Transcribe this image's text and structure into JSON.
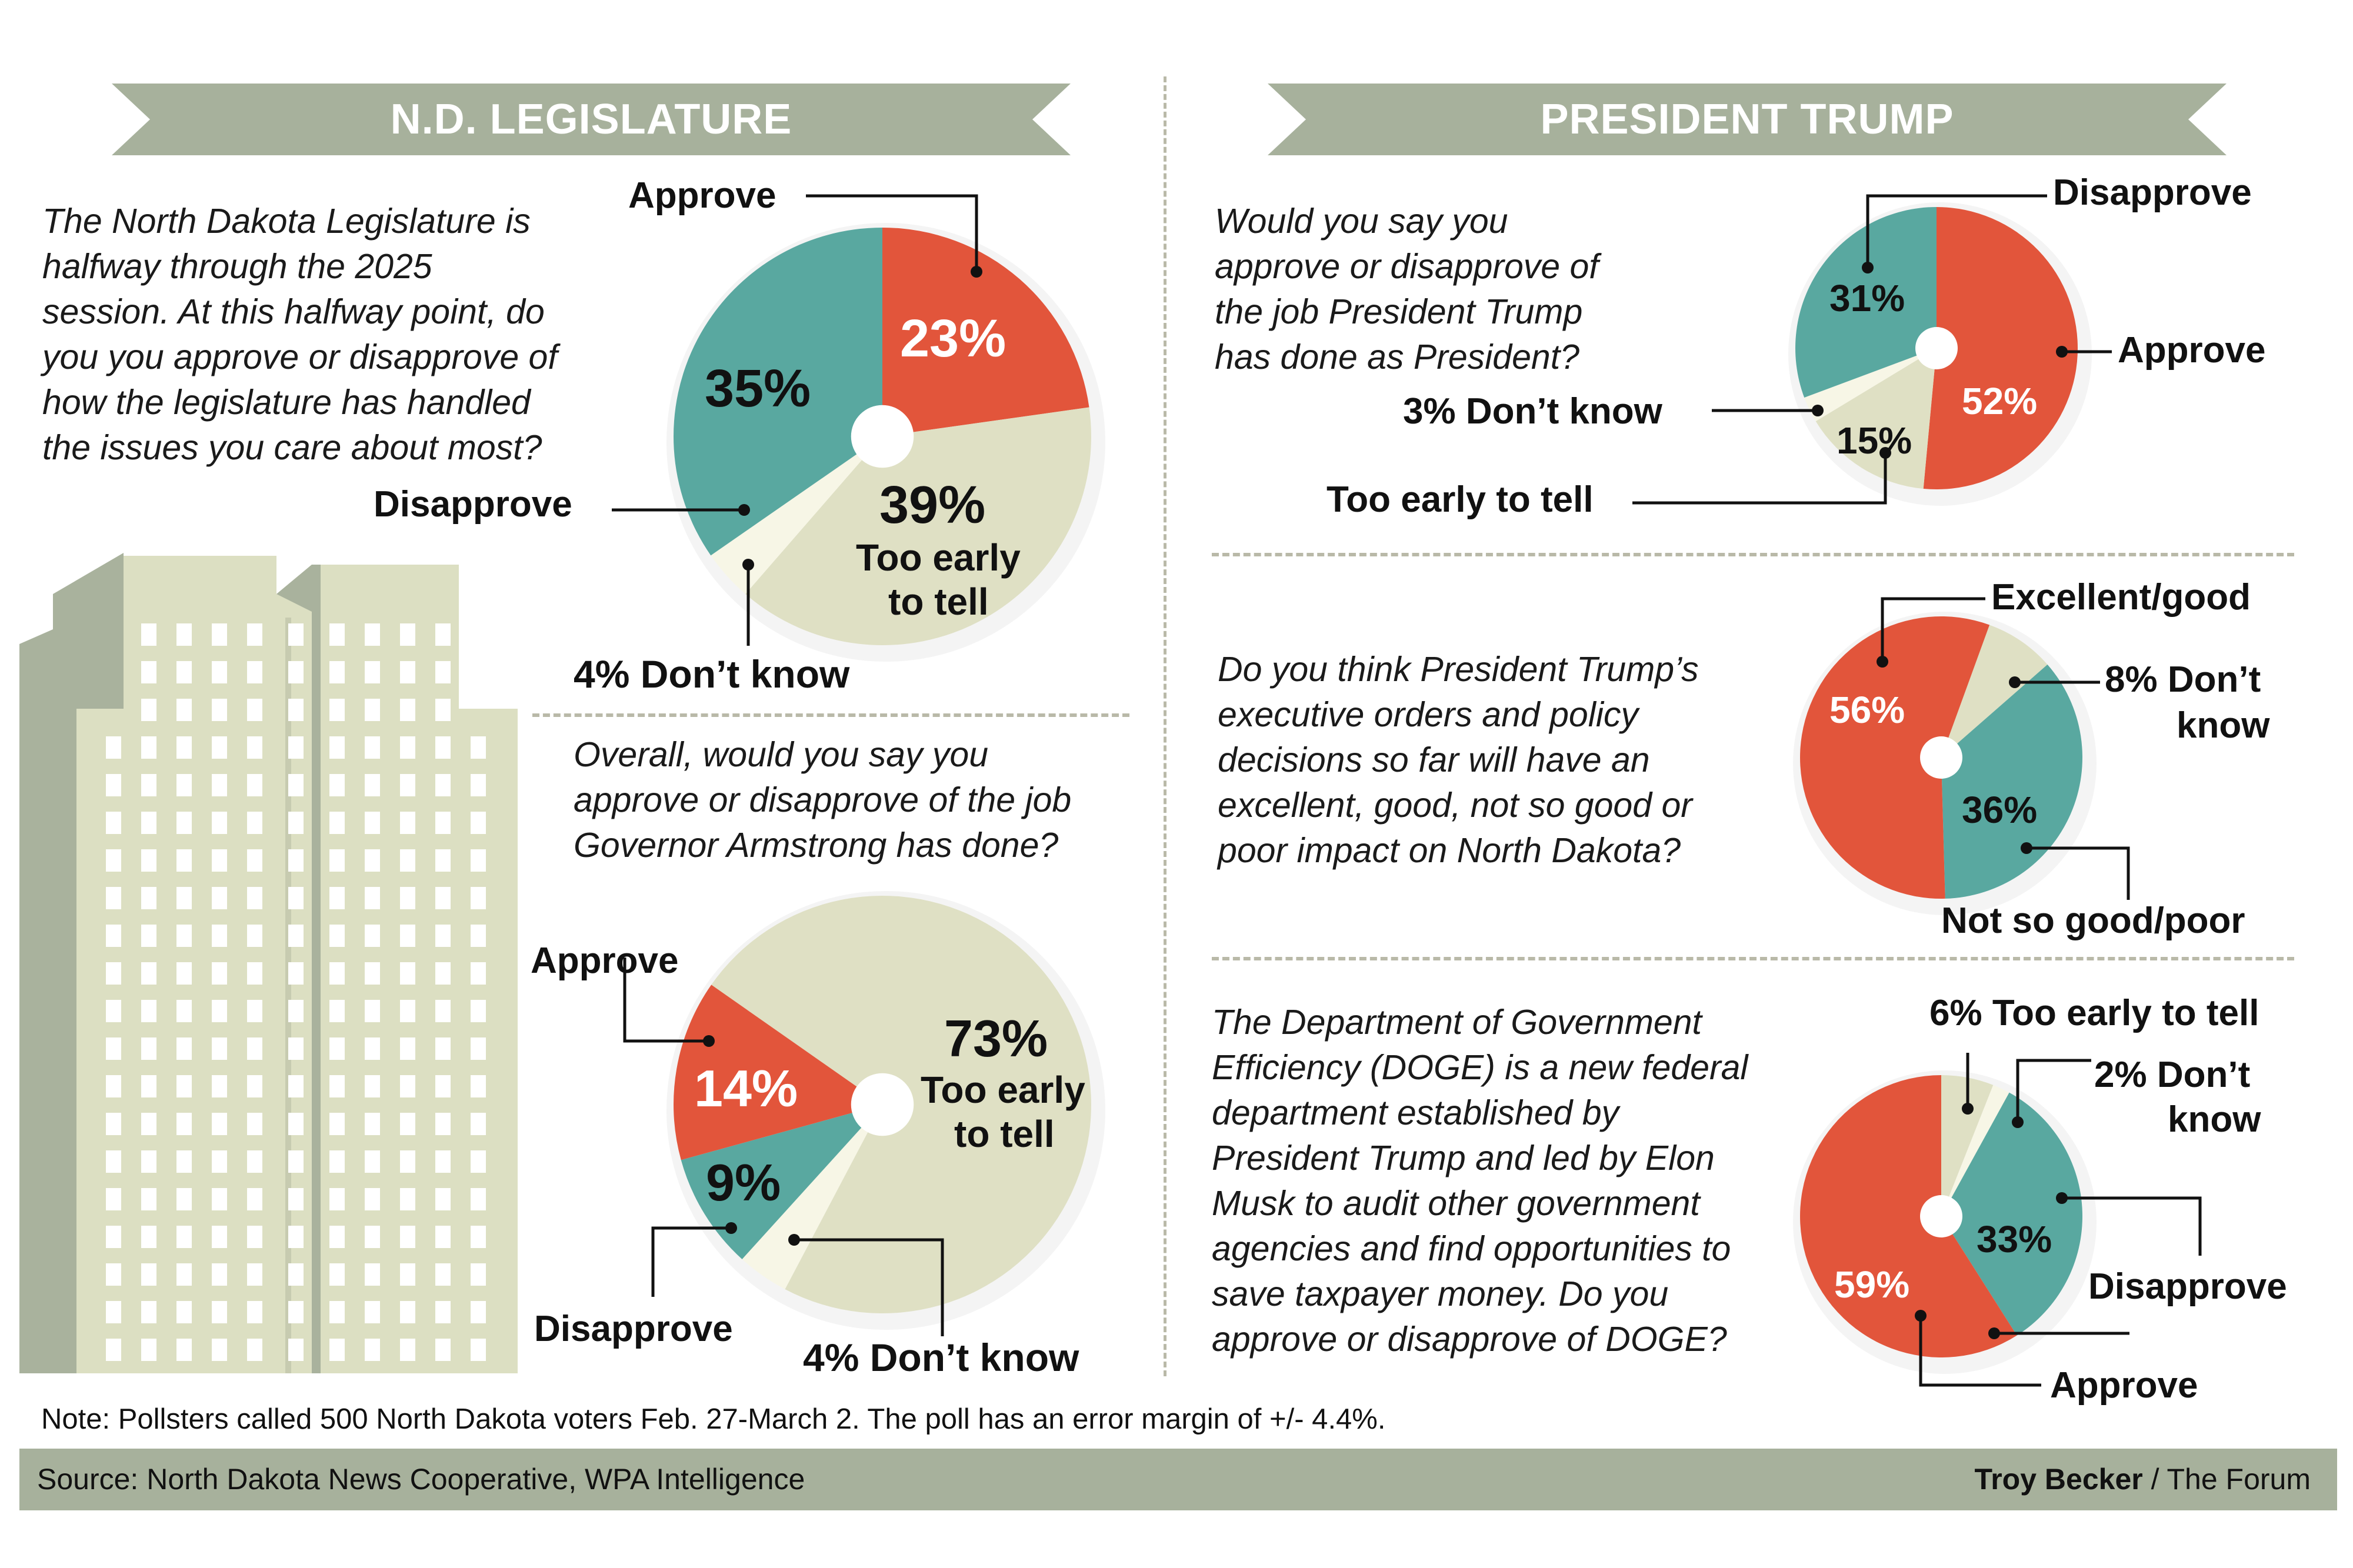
{
  "colors": {
    "approve_red": "#e2553b",
    "disapprove_teal": "#59a8a0",
    "too_early_beige": "#dfe0c4",
    "dont_know_cream": "#f7f6e6",
    "banner_gray": "#a7b19c",
    "building_light": "#dcdfc2",
    "building_dark": "#a9b29d"
  },
  "sections": {
    "left_title": "N.D. LEGISLATURE",
    "right_title": "PRESIDENT TRUMP"
  },
  "questions": {
    "legislature": "The North Dakota Legislature is halfway through the 2025 session. At this halfway point, do you you approve or disapprove of how the legislature has handled the issues you care about most?",
    "governor": "Overall, would you say you approve or disapprove of the job Governor Armstrong has done?",
    "trump_job": "Would you say you approve or disapprove of the job President Trump has done as President?",
    "trump_orders": "Do you think President Trump’s executive orders and policy decisions so far will have an excellent, good, not so good or poor impact on North Dakota?",
    "doge": "The Department of Government Efficiency (DOGE) is a new federal department established by President Trump and led by Elon Musk to audit other government agencies and find opportunities to save taxpayer money. Do you approve or disapprove of DOGE?"
  },
  "question_lines": {
    "legislature": [
      "The North Dakota Legislature is",
      "halfway through the 2025",
      "session. At this halfway point, do",
      "you you approve or disapprove of",
      "how the legislature has handled",
      "the issues you care about most?"
    ],
    "governor": [
      "Overall, would you say you",
      "approve or disapprove of the job",
      "Governor Armstrong has done?"
    ],
    "trump_job": [
      "Would you say you",
      "approve or disapprove of",
      "the job President Trump",
      "has done as President?"
    ],
    "trump_orders": [
      "Do you think President Trump’s",
      "executive orders and policy",
      "decisions so far will have an",
      "excellent, good, not so good or",
      "poor impact on North Dakota?"
    ],
    "doge": [
      "The Department of Government",
      "Efficiency (DOGE) is a new federal",
      "department established by",
      "President Trump and led by Elon",
      "Musk to audit other government",
      "agencies and find opportunities to",
      "save taxpayer money. Do you",
      "approve or disapprove of DOGE?"
    ]
  },
  "labels": {
    "legislature": {
      "approve": "Approve",
      "disapprove": "Disapprove",
      "dont_know": "4% Don’t know",
      "too_early_pct": "39%",
      "too_early_1": "Too early",
      "too_early_2": "to tell",
      "approve_pct": "23%",
      "disapprove_pct": "35%"
    },
    "governor": {
      "approve": "Approve",
      "disapprove": "Disapprove",
      "dont_know": "4% Don’t know",
      "too_early_pct": "73%",
      "too_early_1": "Too early",
      "too_early_2": "to tell",
      "approve_pct": "14%",
      "disapprove_pct": "9%"
    },
    "trump_job": {
      "approve": "Approve",
      "disapprove": "Disapprove",
      "dont_know": "3% Don’t know",
      "too_early": "Too early to tell",
      "approve_pct": "52%",
      "disapprove_pct": "31%",
      "too_early_pct": "15%"
    },
    "trump_orders": {
      "excellent": "Excellent/good",
      "not_so_good": "Not so good/poor",
      "dont_know_1": "8% Don’t",
      "dont_know_2": "know",
      "excellent_pct": "56%",
      "not_so_good_pct": "36%"
    },
    "doge": {
      "approve": "Approve",
      "disapprove": "Disapprove",
      "too_early": "6% Too early to tell",
      "dont_know_1": "2% Don’t",
      "dont_know_2": "know",
      "approve_pct": "59%",
      "disapprove_pct": "33%"
    }
  },
  "footer": {
    "note": "Note: Pollsters called 500 North Dakota voters Feb. 27-March 2. The poll has an error margin of +/- 4.4%.",
    "source": "Source: North Dakota News Cooperative, WPA Intelligence",
    "credit_name": "Troy Becker",
    "credit_outlet": " / The Forum"
  },
  "chart_data": [
    {
      "type": "pie",
      "title": "N.D. Legislature approval",
      "categories": [
        "Approve",
        "Too early to tell",
        "Don't know",
        "Disapprove"
      ],
      "values": [
        23,
        39,
        4,
        35
      ],
      "unit": "%"
    },
    {
      "type": "pie",
      "title": "Governor Armstrong job approval",
      "categories": [
        "Too early to tell",
        "Don't know",
        "Disapprove",
        "Approve"
      ],
      "values": [
        73,
        4,
        9,
        14
      ],
      "unit": "%"
    },
    {
      "type": "pie",
      "title": "President Trump job approval",
      "categories": [
        "Approve",
        "Too early to tell",
        "Don't know",
        "Disapprove"
      ],
      "values": [
        52,
        15,
        3,
        31
      ],
      "unit": "%"
    },
    {
      "type": "pie",
      "title": "Impact of Trump executive orders on North Dakota",
      "categories": [
        "Don't know",
        "Not so good/poor",
        "Excellent/good"
      ],
      "values": [
        8,
        36,
        56
      ],
      "unit": "%"
    },
    {
      "type": "pie",
      "title": "DOGE approval",
      "categories": [
        "Too early to tell",
        "Don't know",
        "Disapprove",
        "Approve"
      ],
      "values": [
        6,
        2,
        33,
        59
      ],
      "unit": "%"
    }
  ]
}
